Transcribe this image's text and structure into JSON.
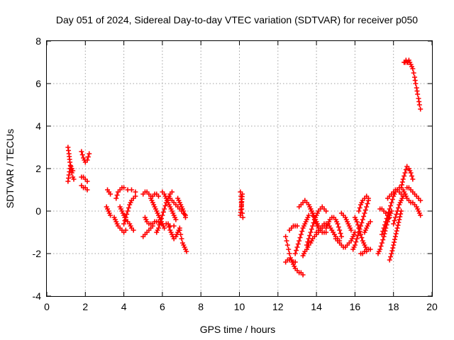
{
  "chart_data": {
    "type": "scatter",
    "title": "Day 051 of 2024, Sidereal Day-to-day VTEC variation (SDTVAR) for receiver p050",
    "xlabel": "GPS time / hours",
    "ylabel": "SDTVAR / TECUs",
    "xlim": [
      0,
      20
    ],
    "ylim": [
      -4,
      8
    ],
    "xticks": [
      "0",
      "2",
      "4",
      "6",
      "8",
      "10",
      "12",
      "14",
      "16",
      "18",
      "20"
    ],
    "yticks": [
      "-4",
      "-2",
      "0",
      "2",
      "4",
      "6",
      "8"
    ],
    "grid": true,
    "marker": "plus",
    "color": "#ff0000",
    "segments": [
      {
        "x": [
          1.1,
          1.15,
          1.2,
          1.25,
          1.3,
          1.35,
          1.4
        ],
        "y": [
          3.0,
          2.7,
          2.3,
          2.0,
          1.8,
          1.6,
          1.5
        ]
      },
      {
        "x": [
          1.1,
          1.15,
          1.2,
          1.25,
          1.3,
          1.35
        ],
        "y": [
          1.4,
          1.7,
          2.0,
          2.1,
          2.0,
          1.9
        ]
      },
      {
        "x": [
          1.8,
          1.9,
          2.0,
          2.1,
          2.2
        ],
        "y": [
          2.8,
          2.5,
          2.3,
          2.4,
          2.7
        ]
      },
      {
        "x": [
          1.8,
          1.9,
          2.0,
          2.1
        ],
        "y": [
          1.6,
          1.6,
          1.5,
          1.4
        ]
      },
      {
        "x": [
          1.8,
          1.9,
          2.0,
          2.1
        ],
        "y": [
          1.2,
          1.1,
          1.1,
          1.0
        ]
      },
      {
        "x": [
          3.15,
          3.3
        ],
        "y": [
          1.0,
          0.8
        ]
      },
      {
        "x": [
          3.1,
          3.2,
          3.3
        ],
        "y": [
          0.2,
          0.0,
          -0.2
        ]
      },
      {
        "x": [
          3.5,
          3.6,
          3.7,
          3.8,
          3.9,
          4.0,
          4.1
        ],
        "y": [
          -0.3,
          -0.5,
          -0.7,
          -0.8,
          -0.9,
          -1.0,
          -0.9
        ]
      },
      {
        "x": [
          3.6,
          3.7,
          3.8,
          3.9,
          4.0,
          4.2,
          4.4,
          4.6
        ],
        "y": [
          0.6,
          0.9,
          1.0,
          1.1,
          1.1,
          1.0,
          1.0,
          0.9
        ]
      },
      {
        "x": [
          3.8,
          3.9,
          4.0,
          4.1,
          4.2,
          4.3,
          4.4,
          4.5
        ],
        "y": [
          0.2,
          0.0,
          -0.2,
          -0.4,
          -0.5,
          -0.6,
          -0.8,
          -0.9
        ]
      },
      {
        "x": [
          4.0,
          4.1,
          4.2,
          4.3,
          4.4,
          4.5,
          4.6
        ],
        "y": [
          -0.6,
          -0.3,
          0.0,
          0.3,
          0.5,
          0.6,
          0.7
        ]
      },
      {
        "x": [
          5.0,
          5.1,
          5.2,
          5.3,
          5.4,
          5.5,
          5.6,
          5.7,
          5.8
        ],
        "y": [
          0.8,
          0.9,
          0.9,
          0.8,
          0.7,
          0.7,
          0.8,
          0.8,
          0.7
        ]
      },
      {
        "x": [
          5.1,
          5.2,
          5.3,
          5.4,
          5.5,
          5.6,
          5.7,
          5.8,
          6.0,
          6.2,
          6.4,
          6.6
        ],
        "y": [
          -0.3,
          -0.5,
          -0.6,
          -0.6,
          -0.6,
          -0.5,
          -0.5,
          -0.5,
          -0.6,
          -0.6,
          -0.7,
          -0.7
        ]
      },
      {
        "x": [
          5.0,
          5.1,
          5.2,
          5.3,
          5.4,
          5.5
        ],
        "y": [
          -1.2,
          -1.1,
          -1.0,
          -0.9,
          -0.8,
          -0.7
        ]
      },
      {
        "x": [
          5.4,
          5.5,
          5.6,
          5.7,
          5.8,
          5.9,
          6.0,
          6.1
        ],
        "y": [
          0.6,
          0.4,
          0.2,
          0.0,
          -0.2,
          -0.4,
          -0.6,
          -0.8
        ]
      },
      {
        "x": [
          5.7,
          5.8,
          5.9,
          6.0,
          6.1,
          6.2,
          6.3,
          6.4,
          6.5
        ],
        "y": [
          -1.0,
          -0.8,
          -0.5,
          -0.2,
          0.1,
          0.4,
          0.6,
          0.8,
          0.9
        ]
      },
      {
        "x": [
          6.0,
          6.1,
          6.2,
          6.3,
          6.4,
          6.5,
          6.6,
          6.7
        ],
        "y": [
          0.9,
          0.8,
          0.6,
          0.4,
          0.2,
          0.0,
          -0.2,
          -0.4
        ]
      },
      {
        "x": [
          6.3,
          6.4,
          6.5,
          6.6,
          6.7,
          6.8,
          6.9
        ],
        "y": [
          -0.6,
          -0.9,
          -1.1,
          -1.3,
          -1.2,
          -1.0,
          -0.8
        ]
      },
      {
        "x": [
          6.4,
          6.5,
          6.6,
          6.7,
          6.8,
          6.9,
          7.0,
          7.1,
          7.2
        ],
        "y": [
          0.6,
          0.5,
          0.4,
          0.3,
          0.2,
          0.1,
          0.0,
          -0.1,
          -0.2
        ]
      },
      {
        "x": [
          6.8,
          6.9,
          7.0,
          7.1,
          7.2
        ],
        "y": [
          0.6,
          0.4,
          0.2,
          0.0,
          -0.3
        ]
      },
      {
        "x": [
          6.9,
          6.95,
          7.0,
          7.05,
          7.1,
          7.15,
          7.2,
          7.25
        ],
        "y": [
          -0.9,
          -1.1,
          -1.3,
          -1.5,
          -1.6,
          -1.7,
          -1.8,
          -1.9
        ]
      },
      {
        "x": [
          10.05,
          10.08,
          10.1,
          10.12,
          10.15,
          10.18
        ],
        "y": [
          0.9,
          0.7,
          0.4,
          0.1,
          -0.1,
          -0.3
        ]
      },
      {
        "x": [
          10.05,
          10.1,
          10.15
        ],
        "y": [
          -0.2,
          0.2,
          0.8
        ]
      },
      {
        "x": [
          12.4,
          12.45,
          12.5,
          12.55,
          12.6,
          12.65,
          12.7,
          12.75,
          12.8,
          12.85,
          12.9,
          13.0,
          13.1,
          13.2,
          13.3
        ],
        "y": [
          -1.2,
          -1.4,
          -1.6,
          -1.8,
          -2.0,
          -2.2,
          -2.3,
          -2.4,
          -2.5,
          -2.6,
          -2.7,
          -2.8,
          -2.9,
          -2.9,
          -3.0
        ]
      },
      {
        "x": [
          12.4,
          12.5,
          12.6,
          12.7,
          12.8,
          12.9
        ],
        "y": [
          -2.4,
          -2.3,
          -2.3,
          -2.3,
          -2.4,
          -2.4
        ]
      },
      {
        "x": [
          12.6,
          12.7,
          12.8,
          12.9,
          13.0
        ],
        "y": [
          -0.9,
          -0.8,
          -0.7,
          -0.7,
          -0.7
        ]
      },
      {
        "x": [
          12.9,
          13.0,
          13.1,
          13.2,
          13.3,
          13.4,
          13.5,
          13.6
        ],
        "y": [
          -2.0,
          -1.7,
          -1.4,
          -1.1,
          -0.8,
          -0.6,
          -0.4,
          -0.2
        ]
      },
      {
        "x": [
          13.1,
          13.2,
          13.3,
          13.4,
          13.5,
          13.6,
          13.7,
          13.8,
          13.9,
          14.0,
          14.1
        ],
        "y": [
          0.2,
          0.3,
          0.4,
          0.5,
          0.4,
          0.3,
          0.1,
          -0.1,
          -0.3,
          -0.5,
          -0.7
        ]
      },
      {
        "x": [
          13.3,
          13.4,
          13.5,
          13.6,
          13.7,
          13.8,
          13.9,
          14.0,
          14.1,
          14.2,
          14.3,
          14.4,
          14.5
        ],
        "y": [
          -2.1,
          -1.9,
          -1.8,
          -1.6,
          -1.5,
          -1.3,
          -1.2,
          -1.1,
          -1.0,
          -0.9,
          -0.8,
          -0.7,
          -0.6
        ]
      },
      {
        "x": [
          13.5,
          13.6,
          13.7,
          13.8,
          13.9,
          14.0,
          14.1,
          14.2,
          14.3,
          14.4,
          14.5
        ],
        "y": [
          -1.6,
          -1.3,
          -1.0,
          -0.7,
          -0.4,
          -0.2,
          0.0,
          0.1,
          0.2,
          0.1,
          0.0
        ]
      },
      {
        "x": [
          13.7,
          13.8,
          13.9,
          14.0,
          14.1,
          14.2,
          14.3,
          14.4,
          14.5
        ],
        "y": [
          0.1,
          -0.1,
          -0.4,
          -0.6,
          -0.8,
          -0.9,
          -1.0,
          -1.0,
          -1.0
        ]
      },
      {
        "x": [
          14.0,
          14.2,
          14.4,
          14.6,
          14.8,
          15.0,
          15.2
        ],
        "y": [
          -1.0,
          -0.8,
          -0.6,
          -0.6,
          -0.9,
          -1.2,
          -1.4
        ]
      },
      {
        "x": [
          14.5,
          14.6,
          14.7,
          14.8,
          14.9,
          15.0,
          15.1,
          15.2,
          15.3
        ],
        "y": [
          -0.8,
          -0.6,
          -0.4,
          -0.3,
          -0.3,
          -0.4,
          -0.6,
          -0.9,
          -1.2
        ]
      },
      {
        "x": [
          15.0,
          15.1,
          15.2,
          15.3,
          15.4,
          15.5,
          15.6,
          15.7,
          15.8,
          15.9,
          16.0
        ],
        "y": [
          -1.3,
          -1.4,
          -1.5,
          -1.6,
          -1.7,
          -1.7,
          -1.6,
          -1.5,
          -1.4,
          -1.2,
          -1.0
        ]
      },
      {
        "x": [
          15.3,
          15.4,
          15.5,
          15.6,
          15.7,
          15.8
        ],
        "y": [
          -0.1,
          -0.2,
          -0.3,
          -0.5,
          -0.7,
          -0.9
        ]
      },
      {
        "x": [
          15.9,
          16.0,
          16.1,
          16.2,
          16.3,
          16.4,
          16.5,
          16.6,
          16.7
        ],
        "y": [
          -1.8,
          -1.6,
          -1.3,
          -1.0,
          -0.7,
          -0.4,
          -0.1,
          0.2,
          0.5
        ]
      },
      {
        "x": [
          16.0,
          16.1,
          16.2,
          16.3,
          16.4,
          16.5,
          16.6
        ],
        "y": [
          -0.3,
          -0.5,
          -0.8,
          -1.1,
          -1.4,
          -1.6,
          -1.8
        ]
      },
      {
        "x": [
          16.2,
          16.3,
          16.4,
          16.5,
          16.6,
          16.7
        ],
        "y": [
          0.0,
          0.3,
          0.5,
          0.6,
          0.7,
          0.6
        ]
      },
      {
        "x": [
          16.3,
          16.4,
          16.5,
          16.6,
          16.7,
          16.8
        ],
        "y": [
          -2.0,
          -2.0,
          -1.9,
          -1.9,
          -1.8,
          -1.8
        ]
      },
      {
        "x": [
          16.5,
          16.6,
          16.7,
          16.8
        ],
        "y": [
          -1.0,
          -0.8,
          -0.6,
          -0.5
        ]
      },
      {
        "x": [
          17.2,
          17.3,
          17.4,
          17.5,
          17.6,
          17.7,
          17.8,
          17.9
        ],
        "y": [
          -2.0,
          -1.8,
          -1.5,
          -1.2,
          -0.8,
          -0.5,
          -0.2,
          0.0
        ]
      },
      {
        "x": [
          17.3,
          17.4,
          17.5,
          17.6,
          17.7,
          17.8
        ],
        "y": [
          0.1,
          0.1,
          0.0,
          -0.1,
          -0.2,
          -0.3
        ]
      },
      {
        "x": [
          17.4,
          17.5,
          17.6,
          17.7,
          17.8,
          17.9,
          18.0,
          18.1,
          18.2,
          18.3
        ],
        "y": [
          -1.1,
          -0.8,
          -0.5,
          -0.2,
          0.1,
          0.4,
          0.7,
          0.9,
          1.0,
          1.1
        ]
      },
      {
        "x": [
          17.8,
          17.9,
          18.0,
          18.1,
          18.2,
          18.3,
          18.4
        ],
        "y": [
          -2.3,
          -2.0,
          -1.6,
          -1.2,
          -0.8,
          -0.4,
          0.0
        ]
      },
      {
        "x": [
          17.7,
          17.8,
          17.9,
          18.0,
          18.1,
          18.2,
          18.3,
          18.4,
          18.5
        ],
        "y": [
          0.6,
          0.7,
          0.8,
          0.9,
          1.0,
          1.0,
          0.9,
          0.8,
          0.7
        ]
      },
      {
        "x": [
          18.0,
          18.1,
          18.2,
          18.3,
          18.4,
          18.5,
          18.6
        ],
        "y": [
          -0.6,
          -0.3,
          0.0,
          0.3,
          0.5,
          0.7,
          0.8
        ]
      },
      {
        "x": [
          18.4,
          18.5,
          18.6,
          18.7,
          18.8,
          18.9,
          19.0
        ],
        "y": [
          1.1,
          1.5,
          1.8,
          2.1,
          2.0,
          1.8,
          1.5
        ]
      },
      {
        "x": [
          18.5,
          18.6,
          18.7,
          18.8,
          18.9,
          19.0,
          19.1,
          19.2,
          19.3,
          19.4
        ],
        "y": [
          1.0,
          0.8,
          0.6,
          0.5,
          0.4,
          0.4,
          0.3,
          0.2,
          0.0,
          -0.2
        ]
      },
      {
        "x": [
          18.7,
          18.8,
          18.9,
          19.0,
          19.1,
          19.2,
          19.3,
          19.4
        ],
        "y": [
          1.1,
          1.1,
          1.0,
          0.9,
          0.8,
          0.7,
          0.6,
          0.5
        ]
      },
      {
        "x": [
          18.55,
          18.6,
          18.65,
          18.7,
          18.75,
          18.8,
          18.85,
          18.9,
          18.95,
          19.0,
          19.05,
          19.1,
          19.15,
          19.2,
          19.25,
          19.3,
          19.35,
          19.4
        ],
        "y": [
          7.0,
          7.0,
          7.1,
          7.0,
          7.0,
          7.1,
          7.0,
          6.9,
          6.8,
          6.7,
          6.5,
          6.3,
          6.0,
          5.8,
          5.5,
          5.3,
          5.0,
          4.8
        ]
      }
    ]
  }
}
